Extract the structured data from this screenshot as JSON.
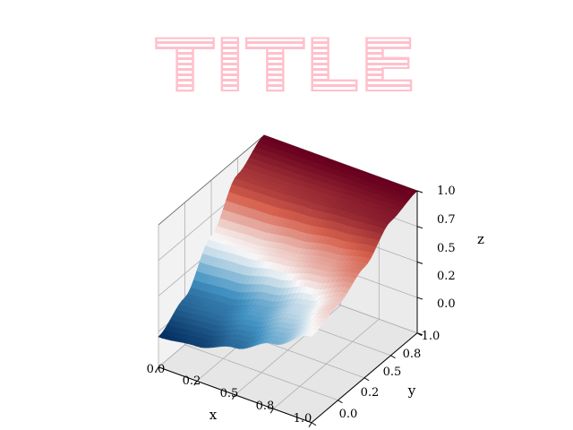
{
  "chart_data": {
    "type": "surface",
    "title": "TITLE",
    "title_color": "#ffc0cb",
    "xlabel": "x",
    "ylabel": "y",
    "zlabel": "z",
    "xlim": [
      0,
      1
    ],
    "ylim": [
      0,
      1
    ],
    "zlim": [
      0,
      1
    ],
    "x_ticks": [
      "0.0",
      "0.2",
      "0.5",
      "0.8",
      "1.0"
    ],
    "y_ticks": [
      "0.0",
      "0.2",
      "0.5",
      "0.8",
      "1.0"
    ],
    "z_ticks": [
      "0.0",
      "0.2",
      "0.5",
      "0.7",
      "1.0"
    ],
    "grid": true,
    "colormap": "RdBu_r",
    "colormap_stops": [
      "#053061",
      "#4393c3",
      "#f7f7f7",
      "#d6604d",
      "#67001f"
    ],
    "surface_samples": {
      "x": [
        0,
        0.25,
        0.5,
        0.75,
        1
      ],
      "y": [
        0,
        0.25,
        0.5,
        0.75,
        1
      ],
      "z": [
        [
          0.0,
          0.15,
          0.5,
          0.85,
          1.0
        ],
        [
          0.04,
          0.18,
          0.52,
          0.86,
          1.0
        ],
        [
          0.15,
          0.29,
          0.57,
          0.88,
          1.0
        ],
        [
          0.31,
          0.43,
          0.64,
          0.91,
          1.0
        ],
        [
          0.5,
          0.58,
          0.72,
          0.93,
          1.0
        ]
      ]
    }
  }
}
